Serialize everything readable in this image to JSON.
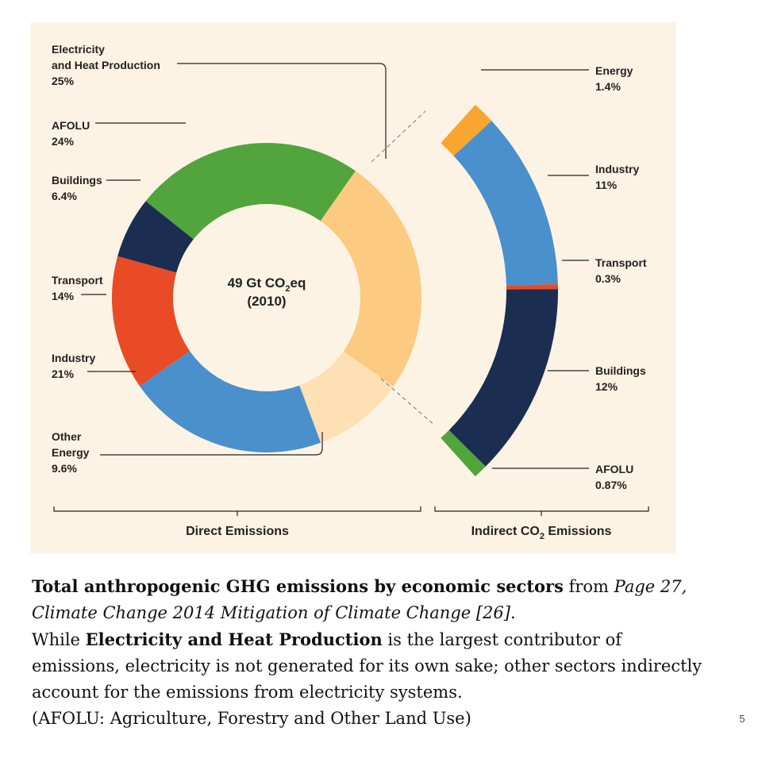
{
  "chart_data": {
    "type": "pie",
    "center_label": {
      "line1_prefix": "49 Gt CO",
      "line1_sub": "2",
      "line1_suffix": "eq",
      "line2": "(2010)"
    },
    "direct": {
      "group_label": "Direct Emissions",
      "slices": [
        {
          "name": "Electricity and Heat Production",
          "label_lines": [
            "Electricity",
            "and Heat Production"
          ],
          "value": 25,
          "value_label": "25%",
          "color": "#fcca80"
        },
        {
          "name": "Other Energy",
          "label_lines": [
            "Other",
            "Energy"
          ],
          "value": 9.6,
          "value_label": "9.6%",
          "color": "#fde0b3"
        },
        {
          "name": "Industry",
          "label_lines": [
            "Industry"
          ],
          "value": 21,
          "value_label": "21%",
          "color": "#4a90cc"
        },
        {
          "name": "Transport",
          "label_lines": [
            "Transport"
          ],
          "value": 14,
          "value_label": "14%",
          "color": "#e84b26"
        },
        {
          "name": "Buildings",
          "label_lines": [
            "Buildings"
          ],
          "value": 6.4,
          "value_label": "6.4%",
          "color": "#1c2d52"
        },
        {
          "name": "AFOLU",
          "label_lines": [
            "AFOLU"
          ],
          "value": 24,
          "value_label": "24%",
          "color": "#52a43c"
        }
      ]
    },
    "indirect": {
      "group_label_prefix": "Indirect CO",
      "group_label_sub": "2",
      "group_label_suffix": " Emissions",
      "segments": [
        {
          "name": "Energy",
          "value": 1.4,
          "value_label": "1.4%",
          "color": "#f8a630"
        },
        {
          "name": "Industry",
          "value": 11,
          "value_label": "11%",
          "color": "#4a90cc"
        },
        {
          "name": "Transport",
          "value": 0.3,
          "value_label": "0.3%",
          "color": "#e84b26"
        },
        {
          "name": "Buildings",
          "value": 12,
          "value_label": "12%",
          "color": "#1c2d52"
        },
        {
          "name": "AFOLU",
          "value": 0.87,
          "value_label": "0.87%",
          "color": "#52a43c"
        }
      ]
    }
  },
  "caption": {
    "title_bold": "Total anthropogenic GHG emissions by economic sectors",
    "from_text": " from ",
    "source_italic": "Page 27, Climate Change 2014 Mitigation of Climate Change [26].",
    "line2_pre": "While ",
    "line2_bold": "Electricity and Heat Production",
    "line2_post": " is the largest contributor of emissions, electricity is not generated for its own sake; other sectors indirectly account for the emissions from electricity systems.",
    "line3": "(AFOLU: Agriculture, Forestry and Other Land Use)"
  },
  "page_number": "5"
}
